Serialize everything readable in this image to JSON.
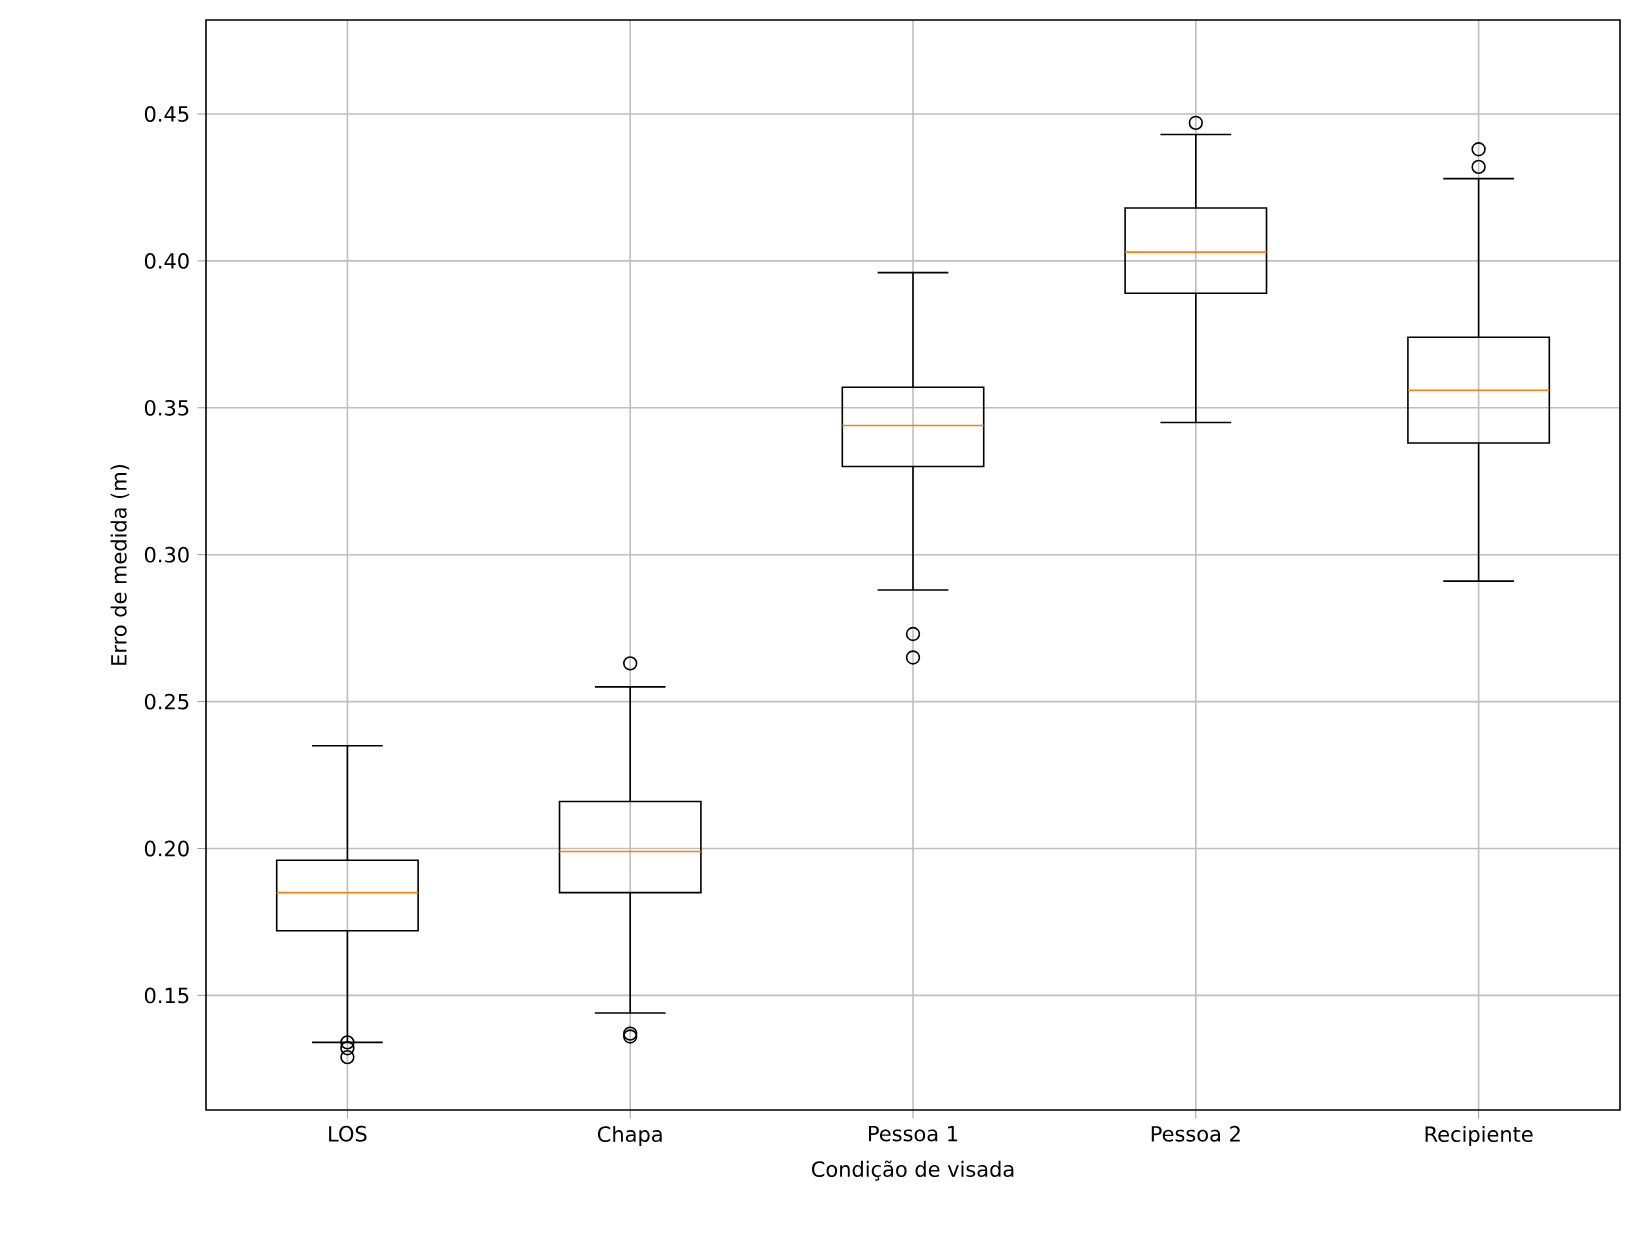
{
  "chart_data": {
    "type": "box",
    "xlabel": "Condição de visada",
    "ylabel": "Erro de medida (m)",
    "categories": [
      "LOS",
      "Chapa",
      "Pessoa 1",
      "Pessoa 2",
      "Recipiente"
    ],
    "boxes": [
      {
        "low": 0.134,
        "q1": 0.172,
        "median": 0.185,
        "q3": 0.196,
        "high": 0.235,
        "outliers": [
          0.134,
          0.132,
          0.129
        ]
      },
      {
        "low": 0.144,
        "q1": 0.185,
        "median": 0.199,
        "q3": 0.216,
        "high": 0.255,
        "outliers": [
          0.263,
          0.137,
          0.136
        ]
      },
      {
        "low": 0.288,
        "q1": 0.33,
        "median": 0.344,
        "q3": 0.357,
        "high": 0.396,
        "outliers": [
          0.273,
          0.265
        ]
      },
      {
        "low": 0.345,
        "q1": 0.389,
        "median": 0.403,
        "q3": 0.418,
        "high": 0.443,
        "outliers": [
          0.447
        ]
      },
      {
        "low": 0.291,
        "q1": 0.338,
        "median": 0.356,
        "q3": 0.374,
        "high": 0.428,
        "outliers": [
          0.438,
          0.432
        ]
      }
    ],
    "ylim": [
      0.111,
      0.482
    ],
    "yticks": [
      0.15,
      {
        "value": 0.2,
        "label": "0.20"
      },
      0.25,
      {
        "value": 0.3,
        "label": "0.30"
      },
      0.35,
      {
        "value": 0.4,
        "label": "0.40"
      },
      0.45
    ],
    "grid": true,
    "marker": "circle"
  }
}
